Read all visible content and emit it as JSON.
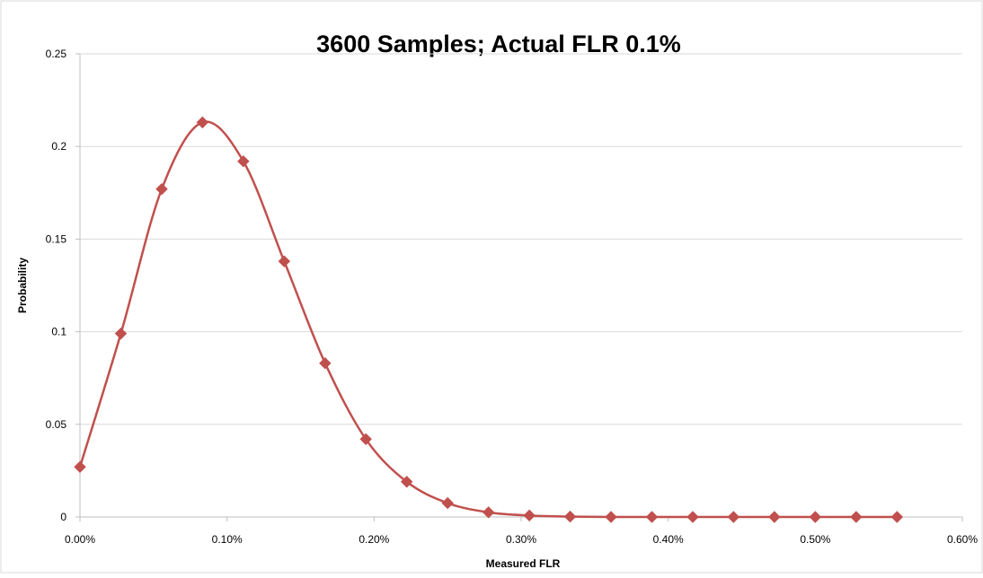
{
  "chart_data": {
    "type": "line",
    "title": "3600 Samples; Actual FLR 0.1%",
    "xlabel": "Measured FLR",
    "ylabel": "Probability",
    "xlim": [
      0,
      0.006
    ],
    "ylim": [
      0,
      0.25
    ],
    "x_ticks": [
      "0.00%",
      "0.10%",
      "0.20%",
      "0.30%",
      "0.40%",
      "0.50%",
      "0.60%"
    ],
    "y_ticks": [
      "0",
      "0.05",
      "0.1",
      "0.15",
      "0.2",
      "0.25"
    ],
    "grid": "horizontal",
    "legend": "none",
    "series": [
      {
        "color": "#c0504d",
        "marker": "diamond",
        "smooth": true,
        "points": [
          {
            "x": 0.0,
            "y": 0.027
          },
          {
            "x": 0.000278,
            "y": 0.099
          },
          {
            "x": 0.000556,
            "y": 0.177
          },
          {
            "x": 0.000833,
            "y": 0.213
          },
          {
            "x": 0.001111,
            "y": 0.192
          },
          {
            "x": 0.001389,
            "y": 0.138
          },
          {
            "x": 0.001667,
            "y": 0.083
          },
          {
            "x": 0.001944,
            "y": 0.042
          },
          {
            "x": 0.002222,
            "y": 0.019
          },
          {
            "x": 0.0025,
            "y": 0.0075
          },
          {
            "x": 0.002778,
            "y": 0.0025
          },
          {
            "x": 0.003056,
            "y": 0.0008
          },
          {
            "x": 0.003333,
            "y": 0.0002
          },
          {
            "x": 0.003611,
            "y": 0.0
          },
          {
            "x": 0.003889,
            "y": 0.0
          },
          {
            "x": 0.004167,
            "y": 0.0
          },
          {
            "x": 0.004444,
            "y": 0.0
          },
          {
            "x": 0.004722,
            "y": 0.0
          },
          {
            "x": 0.005,
            "y": 0.0
          },
          {
            "x": 0.005278,
            "y": 0.0
          },
          {
            "x": 0.005556,
            "y": 0.0
          }
        ]
      }
    ]
  },
  "colors": {
    "series": "#c0504d",
    "gridline": "#d9d9d9",
    "axis": "#bfbfbf",
    "text": "#000000"
  }
}
